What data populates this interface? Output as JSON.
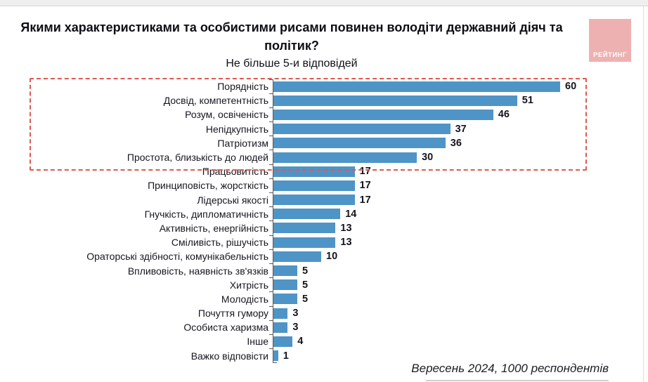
{
  "header": {
    "title": "Якими характеристиками та особистими рисами повинен володіти державний діяч та політик?",
    "subtitle": "Не більше  5-и відповідей"
  },
  "logo": {
    "text": "РЕЙТИНГ",
    "background_color": "#eeb1b1",
    "text_color": "#ffffff"
  },
  "footer": {
    "note": "Вересень 2024, 1000 респондентів"
  },
  "chart_data": {
    "type": "bar",
    "orientation": "horizontal",
    "title": "Якими характеристиками та особистими рисами повинен володіти державний діяч та політик?",
    "subtitle": "Не більше  5-и відповідей",
    "categories": [
      "Порядність",
      "Досвід, компетентність",
      "Розум, освіченість",
      "Непідкупність",
      "Патріотизм",
      "Простота, близькість до людей",
      "Працьовитість",
      "Принциповість, жорсткість",
      "Лідерські якості",
      "Гнучкість, дипломатичність",
      "Активність, енергійність",
      "Сміливість, рішучість",
      "Ораторські здібності, комунікабельність",
      "Впливовість, наявність зв'язків",
      "Хитрість",
      "Молодість",
      "Почуття гумору",
      "Особиста харизма",
      "Інше",
      "Важко відповісти"
    ],
    "values": [
      60,
      51,
      46,
      37,
      36,
      30,
      17,
      17,
      17,
      14,
      13,
      13,
      10,
      5,
      5,
      5,
      3,
      3,
      4,
      1
    ],
    "xlim": [
      0,
      62
    ],
    "grid": false,
    "legend": "none",
    "bar_color": "#4f94c6",
    "value_labels": "end-of-bar",
    "highlight": {
      "description": "dashed box around top 6 answers",
      "first_n_rows": 6,
      "box_color": "#dd5a52",
      "box_style": "dashed"
    },
    "annotation": "Вересень 2024, 1000 респондентів"
  }
}
